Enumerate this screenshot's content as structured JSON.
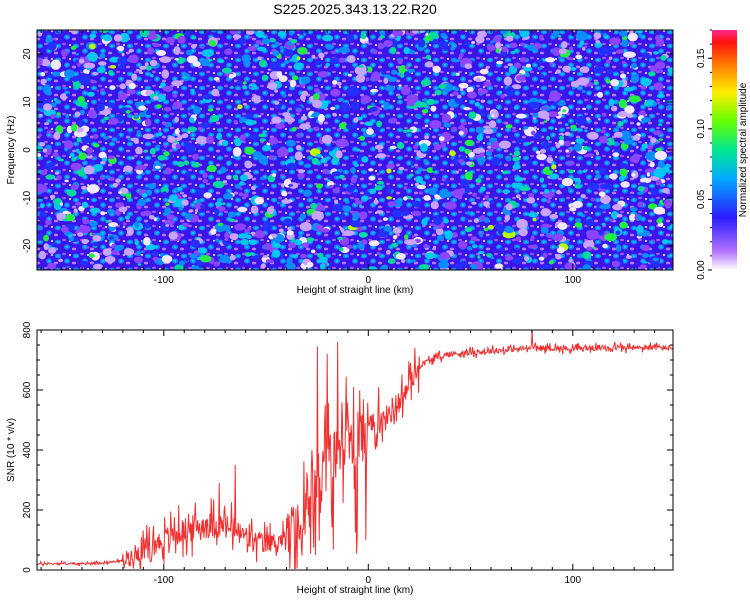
{
  "figure": {
    "title": "S225.2025.343.13.22.R20"
  },
  "chart_data": [
    {
      "type": "heatmap",
      "xlabel": "Height of straight line (km)",
      "ylabel": "Frequency (Hz)",
      "xlim": [
        -162,
        149
      ],
      "ylim": [
        -25,
        25
      ],
      "xticks": [
        -100,
        0,
        100
      ],
      "yticks": [
        -20,
        -10,
        0,
        10,
        20
      ],
      "colorbar": {
        "label": "Normalized spectral amplitude",
        "range": [
          0,
          0.17
        ],
        "ticks": [
          0.0,
          0.05,
          0.1,
          0.15
        ],
        "tick_labels": [
          "0.00",
          "0.05",
          "0.10",
          "0.15"
        ],
        "colormap": "rainbow (white → violet → blue → cyan → green → yellow → orange → red → pink)"
      },
      "description_values": {
        "background_level": 0.03,
        "peak_level": 0.17
      }
    },
    {
      "type": "line",
      "xlabel": "Height of straight line (km)",
      "ylabel": "SNR (10 * v/v)",
      "xlim": [
        -162,
        149
      ],
      "ylim": [
        0,
        800
      ],
      "xticks": [
        -100,
        0,
        100
      ],
      "yticks": [
        0,
        200,
        400,
        600,
        800
      ],
      "color": "#f03030",
      "series": [
        {
          "x": [
            -162,
            -150,
            -140,
            -130,
            -120,
            -115,
            -110,
            -105,
            -100,
            -95,
            -90,
            -85,
            -80,
            -75,
            -70,
            -65,
            -60,
            -55,
            -50,
            -45,
            -40,
            -35,
            -32,
            -30,
            -28,
            -25,
            -22,
            -20,
            -18,
            -15,
            -12,
            -10,
            -8,
            -5,
            -2,
            0,
            2,
            5,
            8,
            10,
            12,
            15,
            18,
            20,
            22,
            25,
            30,
            35,
            40,
            50,
            60,
            70,
            80,
            90,
            100,
            110,
            120,
            130,
            140,
            149
          ],
          "values": [
            20,
            22,
            20,
            25,
            30,
            50,
            70,
            85,
            100,
            120,
            130,
            140,
            150,
            150,
            145,
            130,
            110,
            95,
            90,
            95,
            110,
            140,
            170,
            190,
            250,
            300,
            330,
            350,
            380,
            400,
            420,
            430,
            440,
            450,
            460,
            470,
            480,
            490,
            500,
            520,
            540,
            560,
            590,
            620,
            650,
            680,
            700,
            710,
            720,
            725,
            730,
            735,
            740,
            740,
            738,
            740,
            742,
            740,
            742,
            740
          ],
          "spikes": [
            {
              "x": -73,
              "y": 290
            },
            {
              "x": -65,
              "y": 350
            },
            {
              "x": -25,
              "y": 745
            },
            {
              "x": -20,
              "y": 720
            },
            {
              "x": -15,
              "y": 760
            },
            {
              "x": 5,
              "y": 610
            },
            {
              "x": 80,
              "y": 800
            }
          ]
        }
      ]
    }
  ]
}
